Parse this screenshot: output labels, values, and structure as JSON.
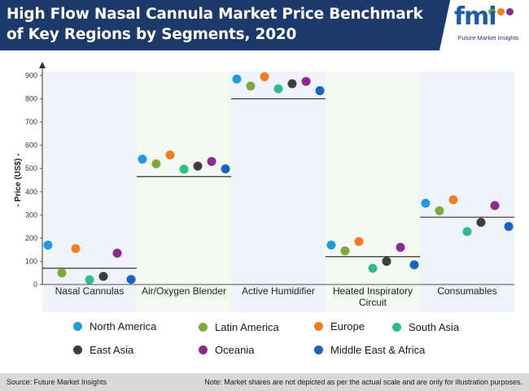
{
  "header": {
    "title": "High Flow Nasal Cannula Market Price Benchmark of Key Regions by Segments, 2020",
    "logo_text": "fmi",
    "logo_subtitle": "Future Market Insights"
  },
  "footer": {
    "source": "Source: Future Market Insights",
    "note": "Note: Market shares are not depicted as per the actual scale and are only for illustration purposes."
  },
  "colors": {
    "header_bg": "#1b3a6b",
    "band_light": "#eef3fa",
    "band_alt": "#f3f9f0"
  },
  "chart_data": {
    "type": "scatter",
    "title": "",
    "xlabel": "",
    "ylabel": "- Price (US$) -",
    "ylim": [
      0,
      900
    ],
    "yticks": [
      0,
      100,
      200,
      300,
      400,
      500,
      600,
      700,
      800,
      900
    ],
    "grid": false,
    "legend_position": "bottom",
    "categories": [
      "Nasal Cannulas",
      "Air/Oxygen Blender",
      "Active Humidifier",
      "Heated Inspiratory Circuit",
      "Consumables"
    ],
    "benchmark": [
      70,
      465,
      800,
      120,
      290
    ],
    "series": [
      {
        "name": "North America",
        "color": "#1e9be0",
        "values": [
          170,
          540,
          885,
          170,
          350
        ]
      },
      {
        "name": "Latin America",
        "color": "#7fa83a",
        "values": [
          50,
          520,
          855,
          145,
          318
        ]
      },
      {
        "name": "Europe",
        "color": "#f47c20",
        "values": [
          155,
          558,
          895,
          185,
          365
        ]
      },
      {
        "name": "South Asia",
        "color": "#2dbb8f",
        "values": [
          20,
          497,
          843,
          70,
          228
        ]
      },
      {
        "name": "East Asia",
        "color": "#3d3d3d",
        "values": [
          35,
          510,
          865,
          100,
          268
        ]
      },
      {
        "name": "Oceania",
        "color": "#8e2a8e",
        "values": [
          135,
          530,
          875,
          160,
          340
        ]
      },
      {
        "name": "Middle East & Africa",
        "color": "#1565c0",
        "values": [
          22,
          498,
          835,
          85,
          250
        ]
      }
    ]
  }
}
